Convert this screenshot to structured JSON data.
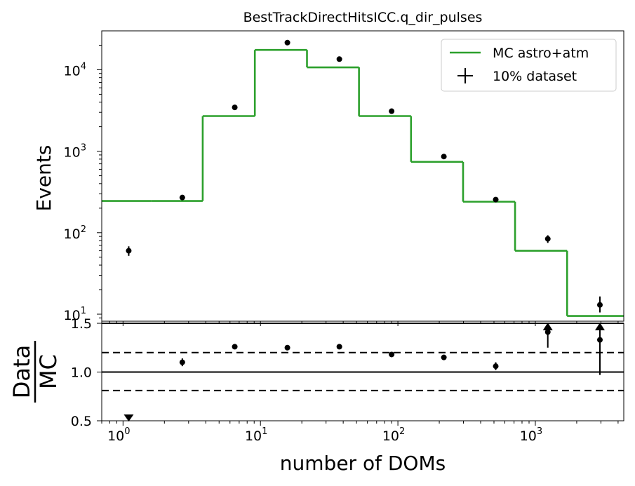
{
  "chart_data": {
    "type": "line",
    "title": "BestTrackDirectHitsICC.q_dir_pulses",
    "xlabel": "number of DOMs",
    "x_scale": "log",
    "x_range": [
      0.7,
      4400
    ],
    "x_ticks": [
      {
        "value": 1,
        "base": "10",
        "exp": "0"
      },
      {
        "value": 10,
        "base": "10",
        "exp": "1"
      },
      {
        "value": 100,
        "base": "10",
        "exp": "2"
      },
      {
        "value": 1000,
        "base": "10",
        "exp": "3"
      }
    ],
    "legend": {
      "placement": "top-right",
      "entries": [
        {
          "label": "MC astro+atm",
          "color": "#2ca02c",
          "marker": "line"
        },
        {
          "label": "10% dataset",
          "color": "#000000",
          "marker": "errorbar"
        }
      ]
    },
    "top_panel": {
      "ylabel": "Events",
      "y_scale": "log",
      "y_range": [
        8.2,
        30000
      ],
      "y_ticks": [
        {
          "value": 10,
          "base": "10",
          "exp": "1"
        },
        {
          "value": 100,
          "base": "10",
          "exp": "2"
        },
        {
          "value": 1000,
          "base": "10",
          "exp": "3"
        },
        {
          "value": 10000,
          "base": "10",
          "exp": "4"
        }
      ],
      "mc_series": {
        "name": "MC astro+atm",
        "color": "#2ca02c",
        "bin_edges": [
          0.7,
          1.6,
          3.8,
          9.1,
          21.8,
          52.1,
          124.6,
          298,
          712,
          1703,
          4400
        ],
        "values": [
          245,
          245,
          2700,
          17500,
          10700,
          2700,
          740,
          240,
          60,
          9.5
        ]
      },
      "data_series": {
        "name": "10% dataset",
        "color": "#000000",
        "x": [
          1.1,
          2.7,
          6.5,
          15.7,
          37.5,
          90,
          216,
          515,
          1232,
          2950
        ],
        "y": [
          60,
          270,
          3450,
          21500,
          13500,
          3100,
          860,
          255,
          84,
          13
        ],
        "yerr_low": [
          52,
          255,
          3380,
          21300,
          13380,
          3040,
          830,
          240,
          75,
          10.5
        ],
        "yerr_high": [
          68,
          285,
          3520,
          21700,
          13620,
          3160,
          890,
          270,
          93,
          16.5
        ]
      }
    },
    "ratio_panel": {
      "ylabel_numerator": "Data",
      "ylabel_denominator": "MC",
      "y_range": [
        0.5,
        1.5
      ],
      "y_ticks": [
        {
          "value": 0.5,
          "label": "0.5"
        },
        {
          "value": 1.0,
          "label": "1.0"
        },
        {
          "value": 1.5,
          "label": "1.5"
        }
      ],
      "reference_lines": {
        "solid": [
          1.0,
          1.5
        ],
        "dashed": [
          0.81,
          1.2
        ]
      },
      "points": {
        "x": [
          2.7,
          6.5,
          15.7,
          37.5,
          90,
          216,
          515
        ],
        "y": [
          1.1,
          1.26,
          1.25,
          1.26,
          1.18,
          1.15,
          1.06
        ],
        "yerr_low": [
          1.06,
          1.25,
          1.24,
          1.25,
          1.17,
          1.13,
          1.02
        ],
        "yerr_high": [
          1.14,
          1.27,
          1.26,
          1.27,
          1.19,
          1.17,
          1.1
        ]
      },
      "extra_points": [
        {
          "x": 1232,
          "y": 1.41,
          "err_low": 1.25,
          "err_high": 1.45
        },
        {
          "x": 2950,
          "y": 1.33,
          "err_low": 0.97,
          "err_high": 1.45
        }
      ],
      "off_scale_markers": [
        {
          "x": 1.1,
          "direction": "down"
        },
        {
          "x": 1232,
          "direction": "up"
        },
        {
          "x": 2950,
          "direction": "up"
        }
      ]
    }
  }
}
